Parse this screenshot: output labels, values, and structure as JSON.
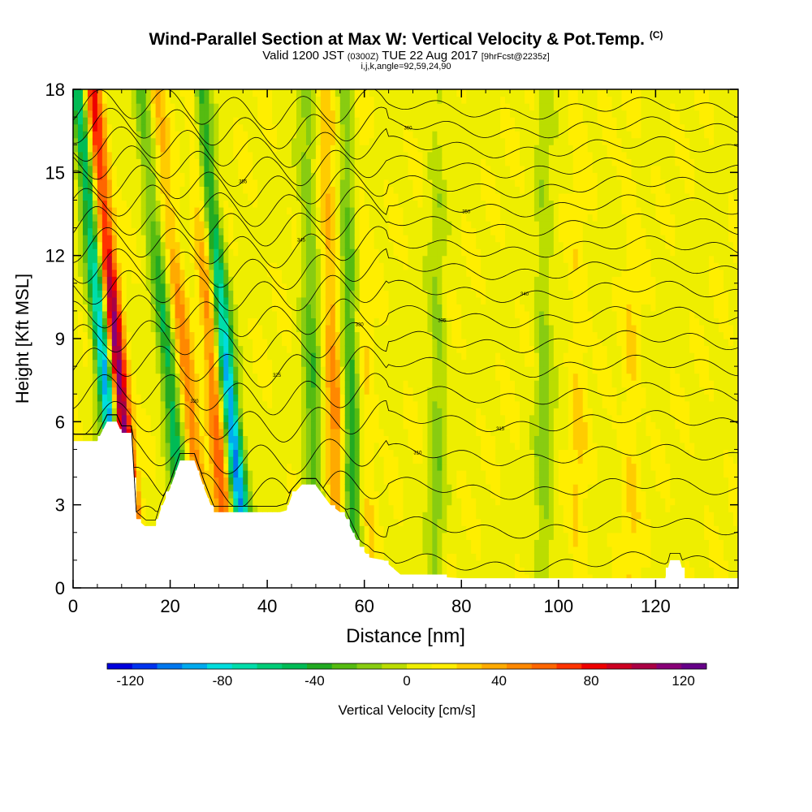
{
  "title": {
    "main": "Wind-Parallel Section at Max W: Vertical Velocity & Pot.Temp.",
    "copyright": "(C)",
    "valid_prefix": "Valid 1200 JST",
    "valid_utc": "(0300Z)",
    "valid_date": "TUE 22 Aug 2017",
    "forecast": "[9hrFcst@2235z]",
    "indices": "i,j,k,angle=92,59,24,90"
  },
  "chart_data": {
    "type": "heatmap",
    "xlabel": "Distance [nm]",
    "ylabel": "Height [Kft MSL]",
    "xlim": [
      0,
      137
    ],
    "ylim": [
      0,
      18
    ],
    "x_ticks": [
      0,
      20,
      40,
      60,
      80,
      100,
      120
    ],
    "y_ticks": [
      0,
      3,
      6,
      9,
      12,
      15,
      18
    ],
    "colorbar": {
      "label": "Vertical Velocity [cm/s]",
      "range": [
        -130,
        130
      ],
      "ticks": [
        -120,
        -80,
        -40,
        0,
        40,
        80,
        120
      ],
      "colors": [
        "#0000dd",
        "#0033ee",
        "#0077ee",
        "#00aaee",
        "#00dddd",
        "#00ddaa",
        "#00cc77",
        "#00bb55",
        "#22aa22",
        "#55bb11",
        "#88cc11",
        "#bbdd00",
        "#eeee00",
        "#ffee00",
        "#ffcc00",
        "#ffaa00",
        "#ff8800",
        "#ff6600",
        "#ff3300",
        "#ee0000",
        "#cc0022",
        "#aa0044",
        "#880077",
        "#660088"
      ]
    },
    "updraft_bands": [
      {
        "x_bottom": 13,
        "x_top": 4,
        "w": 130
      },
      {
        "x_bottom": 28,
        "x_top": 17,
        "w": 45
      },
      {
        "x_bottom": 32,
        "x_top": 25,
        "w": 55
      },
      {
        "x_bottom": 55,
        "x_top": 52,
        "w": 40
      },
      {
        "x_bottom": 61,
        "x_top": 59,
        "w": 15
      },
      {
        "x_bottom": 104,
        "x_top": 104,
        "w": 15
      },
      {
        "x_bottom": 115,
        "x_top": 115,
        "w": 15
      }
    ],
    "downdraft_bands": [
      {
        "x_bottom": 11,
        "x_top": 1,
        "w": -120
      },
      {
        "x_bottom": 24,
        "x_top": 14,
        "w": -60
      },
      {
        "x_bottom": 36,
        "x_top": 26,
        "w": -110
      },
      {
        "x_bottom": 50,
        "x_top": 48,
        "w": -40
      },
      {
        "x_bottom": 58,
        "x_top": 56,
        "w": -50
      },
      {
        "x_bottom": 75,
        "x_top": 75,
        "w": -25
      },
      {
        "x_bottom": 97,
        "x_top": 97,
        "w": -25
      }
    ],
    "terrain": [
      [
        0,
        5.3
      ],
      [
        5,
        5.3
      ],
      [
        7,
        6.0
      ],
      [
        9,
        6.0
      ],
      [
        10,
        5.6
      ],
      [
        12,
        5.6
      ],
      [
        13,
        2.5
      ],
      [
        15,
        2.2
      ],
      [
        17,
        2.2
      ],
      [
        18,
        2.8
      ],
      [
        20,
        3.6
      ],
      [
        22,
        4.6
      ],
      [
        25,
        4.6
      ],
      [
        27,
        3.6
      ],
      [
        29,
        2.7
      ],
      [
        42,
        2.7
      ],
      [
        44,
        2.8
      ],
      [
        45,
        3.3
      ],
      [
        47,
        3.7
      ],
      [
        50,
        3.7
      ],
      [
        53,
        3.0
      ],
      [
        56,
        2.6
      ],
      [
        59,
        1.5
      ],
      [
        61,
        1.1
      ],
      [
        64,
        1.0
      ],
      [
        68,
        0.4
      ],
      [
        75,
        0.4
      ],
      [
        80,
        0.35
      ],
      [
        122,
        0.35
      ],
      [
        123,
        1.0
      ],
      [
        125,
        1.0
      ],
      [
        126,
        0.35
      ],
      [
        137,
        0.35
      ]
    ],
    "isentropes": [
      {
        "base": 0.9,
        "label": ""
      },
      {
        "base": 2.2,
        "label": "305"
      },
      {
        "base": 3.6,
        "label": ""
      },
      {
        "base": 4.8,
        "label": "310"
      },
      {
        "base": 6.0,
        "label": "315"
      },
      {
        "base": 7.0,
        "label": "320"
      },
      {
        "base": 8.0,
        "label": "325"
      },
      {
        "base": 8.9,
        "label": "330"
      },
      {
        "base": 9.8,
        "label": "335"
      },
      {
        "base": 10.7,
        "label": "340"
      },
      {
        "base": 11.5,
        "label": ""
      },
      {
        "base": 12.3,
        "label": "345"
      },
      {
        "base": 13.1,
        "label": ""
      },
      {
        "base": 13.8,
        "label": "350"
      },
      {
        "base": 14.5,
        "label": ""
      },
      {
        "base": 15.2,
        "label": "355"
      },
      {
        "base": 15.9,
        "label": ""
      },
      {
        "base": 16.6,
        "label": "360"
      },
      {
        "base": 17.3,
        "label": ""
      }
    ]
  }
}
